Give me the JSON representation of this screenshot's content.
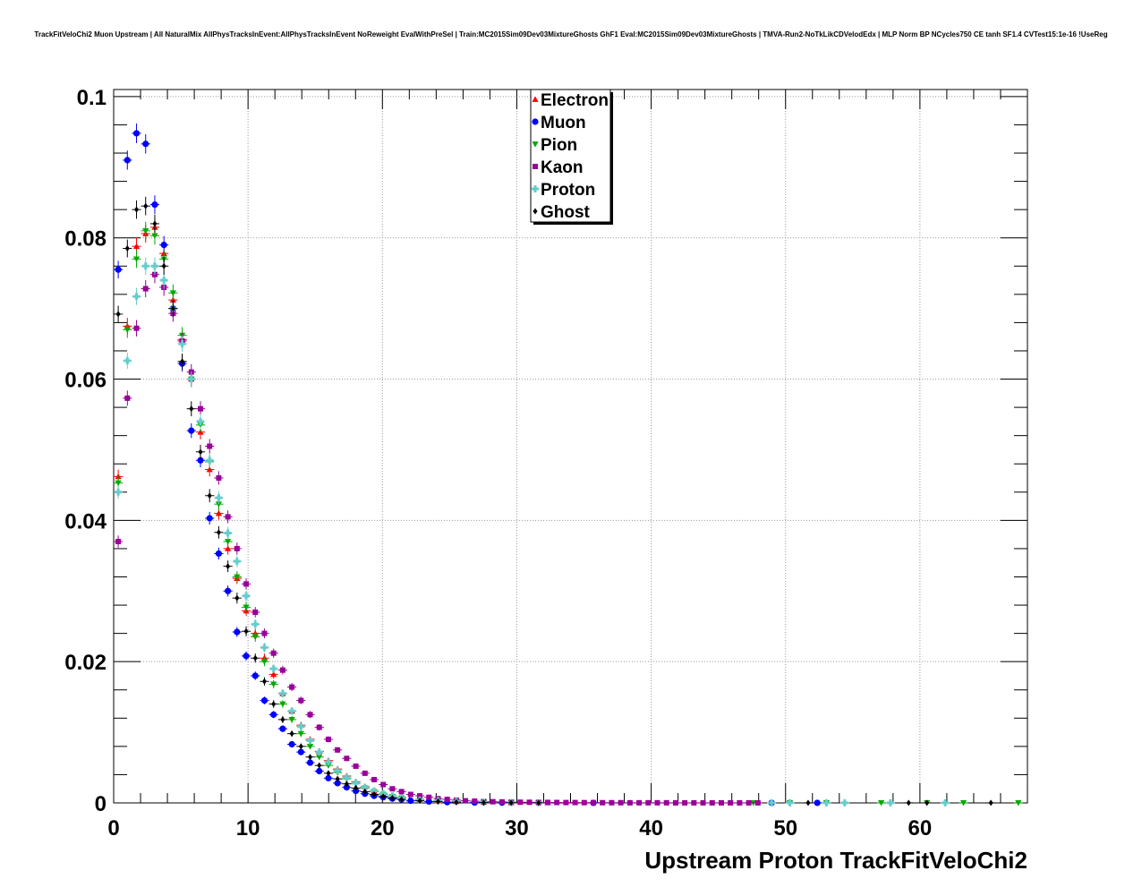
{
  "page": {
    "title": "TrackFitVeloChi2 Muon Upstream | All NaturalMix AllPhysTracksInEvent:AllPhysTracksInEvent NoReweight EvalWithPreSel | Train:MC2015Sim09Dev03MixtureGhosts GhF1 Eval:MC2015Sim09Dev03MixtureGhosts | TMVA-Run2-NoTkLikCDVelodEdx | MLP Norm BP NCycles750 CE tanh SF1.4 CVTest15:1e-16 !UseReg"
  },
  "chart_data": {
    "type": "scatter",
    "title": "TrackFitVeloChi2 Muon Upstream | All NaturalMix AllPhysTracksInEvent:AllPhysTracksInEvent NoReweight EvalWithPreSel | Train:MC2015Sim09Dev03MixtureGhosts GhF1 Eval:MC2015Sim09Dev03MixtureGhosts | TMVA-Run2-NoTkLikCDVelodEdx | MLP Norm BP NCycles750 CE tanh SF1.4 CVTest15:1e-16 !UseReg",
    "xlabel": "Upstream Proton TrackFitVeloChi2",
    "ylabel": "",
    "xlim": [
      0,
      68
    ],
    "ylim": [
      0,
      0.101
    ],
    "xticks": [
      "0",
      "10",
      "20",
      "30",
      "40",
      "50",
      "60"
    ],
    "xtick_values": [
      0,
      10,
      20,
      30,
      40,
      50,
      60
    ],
    "yticks": [
      "0",
      "0.02",
      "0.04",
      "0.06",
      "0.08",
      "0.1"
    ],
    "ytick_values": [
      0,
      0.02,
      0.04,
      0.06,
      0.08,
      0.1
    ],
    "grid": true,
    "legend_position": "top-center",
    "bin_width": 0.68,
    "series": [
      {
        "name": "Electron",
        "color": "#ff0000",
        "marker": "triangle-up",
        "x": [
          0.34,
          1.02,
          1.7,
          2.38,
          3.06,
          3.74,
          4.42,
          5.1,
          5.78,
          6.46,
          7.14,
          7.82,
          8.5,
          9.18,
          9.86,
          10.54,
          11.22,
          11.9,
          12.58,
          13.26,
          13.94,
          14.62,
          15.3,
          15.98,
          16.66,
          17.34,
          18.02,
          18.7,
          19.38,
          20.06,
          20.74,
          21.42,
          22.78,
          24.14,
          25.5,
          27.54,
          29.58,
          32.3
        ],
        "y": [
          0.0462,
          0.0675,
          0.0788,
          0.0806,
          0.0815,
          0.0778,
          0.0712,
          0.0656,
          0.06,
          0.0525,
          0.0472,
          0.041,
          0.036,
          0.0318,
          0.0272,
          0.024,
          0.0205,
          0.0182,
          0.0155,
          0.013,
          0.011,
          0.009,
          0.0073,
          0.006,
          0.0048,
          0.0038,
          0.003,
          0.0023,
          0.0017,
          0.0013,
          0.001,
          0.0008,
          0.0005,
          0.0003,
          0.0002,
          0.0001,
          5e-05,
          3e-05
        ]
      },
      {
        "name": "Muon",
        "color": "#0000ff",
        "marker": "circle",
        "x": [
          0.34,
          1.02,
          1.7,
          2.38,
          3.06,
          3.74,
          4.42,
          5.1,
          5.78,
          6.46,
          7.14,
          7.82,
          8.5,
          9.18,
          9.86,
          10.54,
          11.22,
          11.9,
          12.58,
          13.26,
          13.94,
          14.62,
          15.3,
          15.98,
          16.66,
          17.34,
          18.02,
          18.7,
          19.38,
          20.06,
          20.74,
          21.42,
          22.1,
          23.46,
          24.82,
          26.86,
          28.9,
          31.62,
          35.7,
          48.96,
          52.36
        ],
        "y": [
          0.0755,
          0.091,
          0.0948,
          0.0933,
          0.0847,
          0.079,
          0.07,
          0.0622,
          0.0527,
          0.0485,
          0.0403,
          0.0353,
          0.03,
          0.0242,
          0.0208,
          0.018,
          0.0145,
          0.0125,
          0.0105,
          0.0083,
          0.0072,
          0.0057,
          0.0045,
          0.0035,
          0.0028,
          0.0022,
          0.0017,
          0.0013,
          0.001,
          0.0008,
          0.0006,
          0.0005,
          0.0003,
          0.0002,
          0.0001,
          5e-05,
          3e-05,
          2e-05,
          1e-05,
          1e-05,
          1e-05
        ]
      },
      {
        "name": "Pion",
        "color": "#00aa00",
        "marker": "triangle-down",
        "x": [
          0.34,
          1.02,
          1.7,
          2.38,
          3.06,
          3.74,
          4.42,
          5.1,
          5.78,
          6.46,
          7.14,
          7.82,
          8.5,
          9.18,
          9.86,
          10.54,
          11.22,
          11.9,
          12.58,
          13.26,
          13.94,
          14.62,
          15.3,
          15.98,
          16.66,
          17.34,
          18.02,
          18.7,
          19.38,
          20.06,
          20.74,
          21.42,
          22.78,
          24.14,
          25.5,
          27.54,
          29.58,
          31.62,
          47.6,
          50.32,
          53.04,
          57.12,
          60.52,
          63.24,
          67.32
        ],
        "y": [
          0.0453,
          0.067,
          0.077,
          0.081,
          0.0803,
          0.077,
          0.0722,
          0.0662,
          0.06,
          0.0535,
          0.0483,
          0.0423,
          0.037,
          0.032,
          0.0277,
          0.0235,
          0.02,
          0.0168,
          0.014,
          0.0118,
          0.0098,
          0.008,
          0.0065,
          0.0053,
          0.0043,
          0.0034,
          0.0027,
          0.0021,
          0.0016,
          0.0012,
          0.0009,
          0.0007,
          0.0004,
          0.0003,
          0.0002,
          0.0001,
          5e-05,
          3e-05,
          1e-05,
          1e-05,
          1e-05,
          1e-05,
          1e-05,
          1e-05,
          1e-05
        ]
      },
      {
        "name": "Kaon",
        "color": "#990099",
        "marker": "square",
        "x": [
          0.34,
          1.02,
          1.7,
          2.38,
          3.06,
          3.74,
          4.42,
          5.1,
          5.78,
          6.46,
          7.14,
          7.82,
          8.5,
          9.18,
          9.86,
          10.54,
          11.22,
          11.9,
          12.58,
          13.26,
          13.94,
          14.62,
          15.3,
          15.98,
          16.66,
          17.34,
          18.02,
          18.7,
          19.38,
          20.06,
          20.74,
          21.42,
          22.1,
          22.78,
          23.46,
          24.14,
          24.82,
          25.5,
          26.18,
          26.86,
          27.54,
          28.22,
          28.9,
          29.58,
          30.26,
          30.94,
          31.62,
          32.3,
          32.98,
          33.66,
          34.34,
          35.02,
          35.7,
          36.38,
          37.06,
          37.74,
          38.42,
          39.1,
          39.78,
          40.46,
          41.14,
          41.82,
          42.5,
          43.18,
          43.86,
          44.54,
          45.22,
          45.9,
          46.58,
          47.26,
          47.94
        ],
        "y": [
          0.037,
          0.0573,
          0.0672,
          0.0728,
          0.0748,
          0.073,
          0.0693,
          0.0654,
          0.061,
          0.0558,
          0.0505,
          0.046,
          0.0405,
          0.036,
          0.031,
          0.027,
          0.024,
          0.0212,
          0.0188,
          0.0164,
          0.0145,
          0.0125,
          0.0107,
          0.009,
          0.0075,
          0.0063,
          0.0052,
          0.0042,
          0.0033,
          0.0026,
          0.002,
          0.0016,
          0.0012,
          0.001,
          0.0008,
          0.0006,
          0.0005,
          0.0004,
          0.0003,
          0.00025,
          0.0002,
          0.00017,
          0.00014,
          0.00012,
          0.0001,
          9e-05,
          8e-05,
          7e-05,
          6e-05,
          5e-05,
          5e-05,
          4e-05,
          4e-05,
          3e-05,
          3e-05,
          3e-05,
          2e-05,
          2e-05,
          2e-05,
          2e-05,
          2e-05,
          1e-05,
          1e-05,
          1e-05,
          1e-05,
          1e-05,
          1e-05,
          1e-05,
          1e-05,
          1e-05,
          1e-05
        ]
      },
      {
        "name": "Proton",
        "color": "#66cccc",
        "marker": "cross",
        "x": [
          0.34,
          1.02,
          1.7,
          2.38,
          3.06,
          3.74,
          4.42,
          5.1,
          5.78,
          6.46,
          7.14,
          7.82,
          8.5,
          9.18,
          9.86,
          10.54,
          11.22,
          11.9,
          12.58,
          13.26,
          13.94,
          14.62,
          15.3,
          15.98,
          16.66,
          17.34,
          18.02,
          18.7,
          19.38,
          20.06,
          20.74,
          21.42,
          22.78,
          24.14,
          25.5,
          27.54,
          29.58,
          31.62,
          48.96,
          50.32,
          53.04,
          54.4,
          57.8,
          61.88
        ],
        "y": [
          0.044,
          0.0626,
          0.0717,
          0.076,
          0.076,
          0.074,
          0.07,
          0.065,
          0.06,
          0.054,
          0.0485,
          0.0432,
          0.0382,
          0.0342,
          0.0293,
          0.0253,
          0.022,
          0.019,
          0.0155,
          0.013,
          0.0108,
          0.0088,
          0.0072,
          0.0058,
          0.0046,
          0.0036,
          0.0028,
          0.0022,
          0.0017,
          0.0013,
          0.001,
          0.0007,
          0.0004,
          0.0003,
          0.0002,
          0.0001,
          5e-05,
          3e-05,
          1e-05,
          1e-05,
          1e-05,
          1e-05,
          1e-05,
          1e-05
        ]
      },
      {
        "name": "Ghost",
        "color": "#000000",
        "marker": "diamond",
        "x": [
          0.34,
          1.02,
          1.7,
          2.38,
          3.06,
          3.74,
          4.42,
          5.1,
          5.78,
          6.46,
          7.14,
          7.82,
          8.5,
          9.18,
          9.86,
          10.54,
          11.22,
          11.9,
          12.58,
          13.26,
          13.94,
          14.62,
          15.3,
          15.98,
          16.66,
          17.34,
          18.02,
          18.7,
          19.38,
          20.06,
          20.74,
          21.42,
          22.78,
          24.14,
          25.5,
          27.54,
          29.58,
          31.62,
          51.68,
          59.16,
          60.52,
          65.28
        ],
        "y": [
          0.0692,
          0.0785,
          0.084,
          0.0845,
          0.082,
          0.076,
          0.07,
          0.0625,
          0.0558,
          0.0497,
          0.0435,
          0.0383,
          0.0335,
          0.029,
          0.0243,
          0.0205,
          0.0172,
          0.014,
          0.0118,
          0.0098,
          0.008,
          0.0065,
          0.0053,
          0.0042,
          0.0034,
          0.0027,
          0.0021,
          0.0016,
          0.0012,
          0.0009,
          0.0007,
          0.0005,
          0.0003,
          0.0002,
          0.0001,
          5e-05,
          3e-05,
          2e-05,
          1e-05,
          1e-05,
          1e-05,
          1e-05
        ]
      }
    ]
  }
}
